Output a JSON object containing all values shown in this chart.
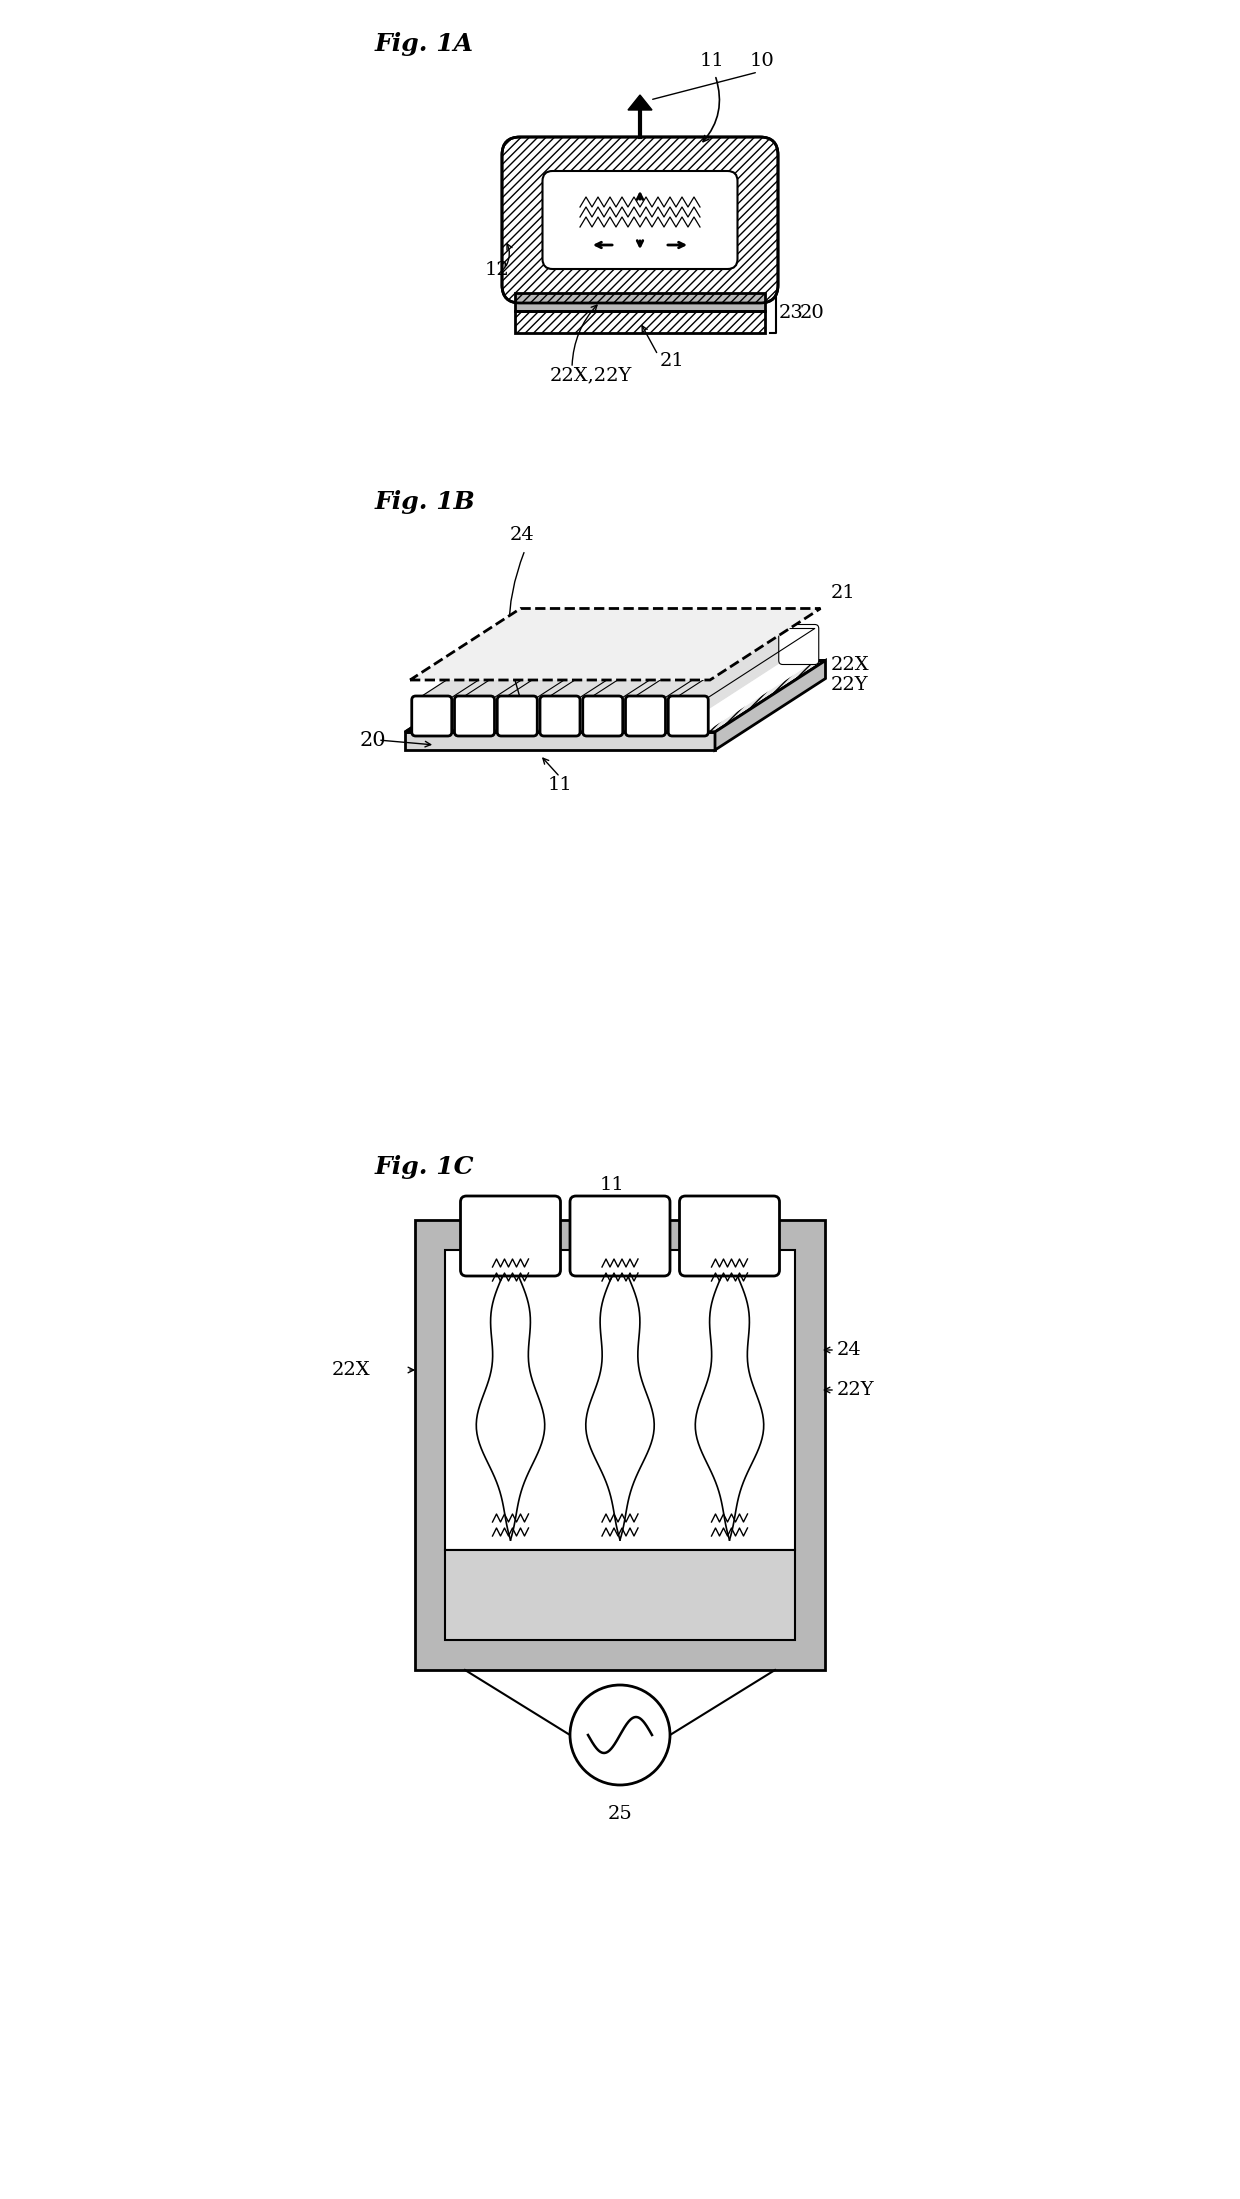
{
  "bg_color": "#ffffff",
  "line_color": "#000000",
  "fig_width": 12.4,
  "fig_height": 21.99,
  "dpi": 100,
  "labels": {
    "fig1A": "Fig. 1A",
    "fig1B": "Fig. 1B",
    "fig1C": "Fig. 1C",
    "lbl_10": "10",
    "lbl_11_1A": "11",
    "lbl_12": "12",
    "lbl_20_1A": "20",
    "lbl_21_1A": "21",
    "lbl_22XY": "22X,22Y",
    "lbl_23": "23",
    "lbl_24_1B": "24",
    "lbl_20_1B": "20",
    "lbl_11_1B": "11",
    "lbl_21_1B": "21",
    "lbl_22X_1B": "22X",
    "lbl_22Y_1B": "22Y",
    "lbl_11_1C": "11",
    "lbl_22X_1C": "22X",
    "lbl_22Y_1C": "22Y",
    "lbl_24_1C": "24",
    "lbl_25": "25"
  }
}
